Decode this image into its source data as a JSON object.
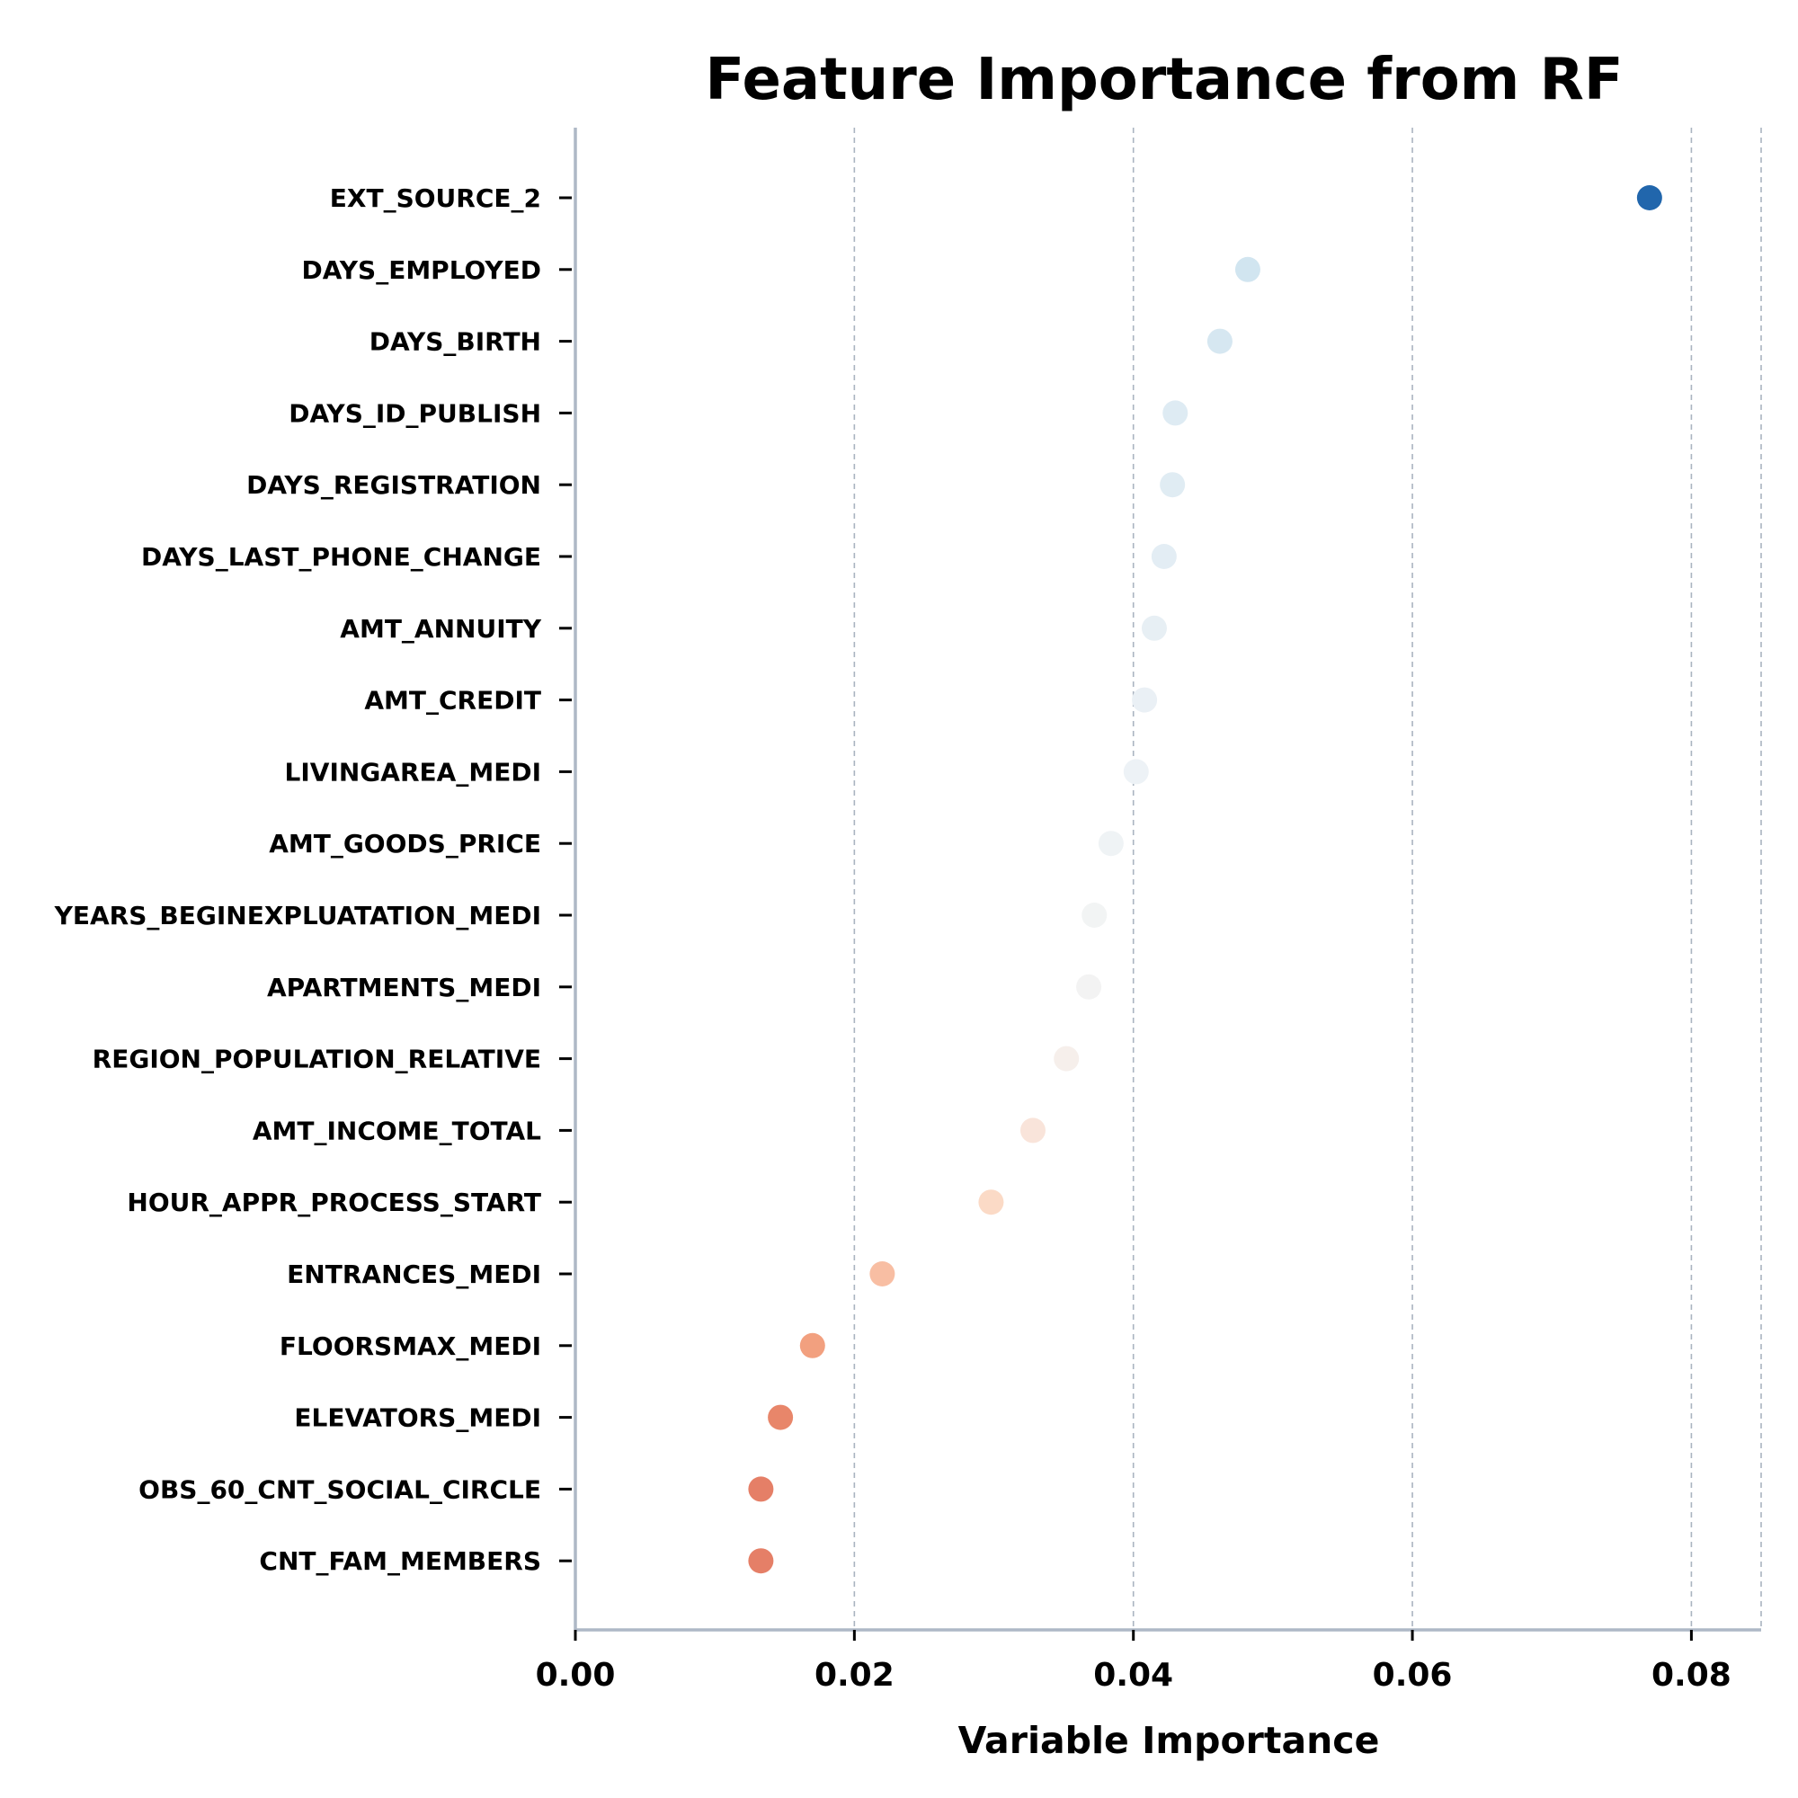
{
  "chart_data": {
    "type": "scatter",
    "title": "Feature Importance from RF",
    "xlabel": "Variable Importance",
    "ylabel": "",
    "xlim": [
      0,
      0.085
    ],
    "xticks": [
      "0.00",
      "0.02",
      "0.04",
      "0.06",
      "0.08"
    ],
    "grid": "vertical dashed",
    "colormap": "RdBu",
    "features": [
      {
        "name": "EXT_SOURCE_2",
        "value": 0.077,
        "color": "#2166ac"
      },
      {
        "name": "DAYS_EMPLOYED",
        "value": 0.0482,
        "color": "#d1e5f0"
      },
      {
        "name": "DAYS_BIRTH",
        "value": 0.0462,
        "color": "#d6e7f1"
      },
      {
        "name": "DAYS_ID_PUBLISH",
        "value": 0.043,
        "color": "#deebf3"
      },
      {
        "name": "DAYS_REGISTRATION",
        "value": 0.0428,
        "color": "#e0ecf3"
      },
      {
        "name": "DAYS_LAST_PHONE_CHANGE",
        "value": 0.0422,
        "color": "#e3edf4"
      },
      {
        "name": "AMT_ANNUITY",
        "value": 0.0415,
        "color": "#e7eff4"
      },
      {
        "name": "AMT_CREDIT",
        "value": 0.0408,
        "color": "#eaf0f5"
      },
      {
        "name": "LIVINGAREA_MEDI",
        "value": 0.0402,
        "color": "#edf2f6"
      },
      {
        "name": "AMT_GOODS_PRICE",
        "value": 0.0384,
        "color": "#eff3f5"
      },
      {
        "name": "YEARS_BEGINEXPLUATATION_MEDI",
        "value": 0.0372,
        "color": "#f2f4f4"
      },
      {
        "name": "APARTMENTS_MEDI",
        "value": 0.0368,
        "color": "#f3f3f3"
      },
      {
        "name": "REGION_POPULATION_RELATIVE",
        "value": 0.0352,
        "color": "#f6efeb"
      },
      {
        "name": "AMT_INCOME_TOTAL",
        "value": 0.0328,
        "color": "#f9e4da"
      },
      {
        "name": "HOUR_APPR_PROCESS_START",
        "value": 0.0298,
        "color": "#fbdac6"
      },
      {
        "name": "ENTRANCES_MEDI",
        "value": 0.022,
        "color": "#f8bea3"
      },
      {
        "name": "FLOORSMAX_MEDI",
        "value": 0.017,
        "color": "#f2a07f"
      },
      {
        "name": "ELEVATORS_MEDI",
        "value": 0.0147,
        "color": "#e8866a"
      },
      {
        "name": "OBS_60_CNT_SOCIAL_CIRCLE",
        "value": 0.0133,
        "color": "#e57f67"
      },
      {
        "name": "CNT_FAM_MEMBERS",
        "value": 0.0133,
        "color": "#e57f67"
      }
    ]
  }
}
